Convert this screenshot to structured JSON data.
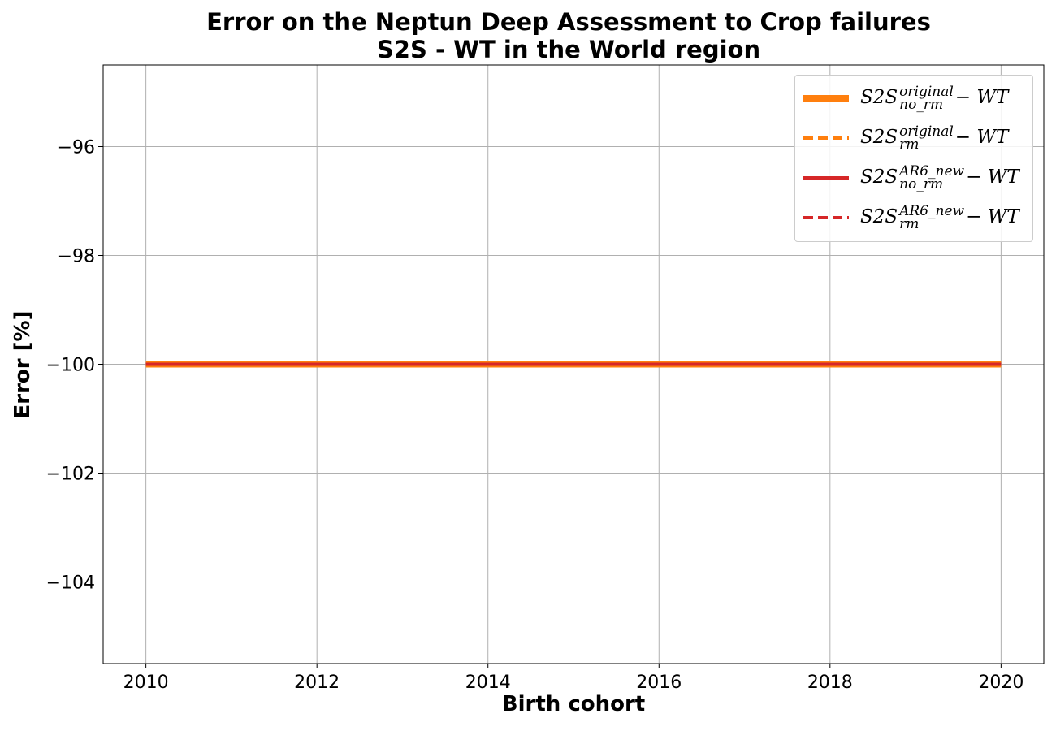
{
  "chart_data": {
    "type": "line",
    "title": "Error on the Neptun Deep Assessment to Crop failures",
    "subtitle": "S2S - WT in the World region",
    "xlabel": "Birth cohort",
    "ylabel": "Error [%]",
    "xlim": [
      2009.5,
      2020.5
    ],
    "ylim": [
      -105.5,
      -94.5
    ],
    "xticks": [
      2010,
      2012,
      2014,
      2016,
      2018,
      2020
    ],
    "yticks": [
      -96,
      -98,
      -100,
      -102,
      -104
    ],
    "ytick_labels": [
      "−96",
      "−98",
      "−100",
      "−102",
      "−104"
    ],
    "grid": true,
    "legend_position": "top-right",
    "x": [
      2010,
      2011,
      2012,
      2013,
      2014,
      2015,
      2016,
      2017,
      2018,
      2019,
      2020
    ],
    "series": [
      {
        "base": "S2S",
        "sup": "original",
        "sub": "no_rm",
        "suffix": "− WT",
        "color": "#ff7f0e",
        "style": "solid",
        "width": 8,
        "values": [
          -100,
          -100,
          -100,
          -100,
          -100,
          -100,
          -100,
          -100,
          -100,
          -100,
          -100
        ]
      },
      {
        "base": "S2S",
        "sup": "original",
        "sub": "rm",
        "suffix": "− WT",
        "color": "#ff7f0e",
        "style": "dashed",
        "width": 4,
        "values": [
          -100,
          -100,
          -100,
          -100,
          -100,
          -100,
          -100,
          -100,
          -100,
          -100,
          -100
        ]
      },
      {
        "base": "S2S",
        "sup": "AR6_new",
        "sub": "no_rm",
        "suffix": "− WT",
        "color": "#d62728",
        "style": "solid",
        "width": 4,
        "values": [
          -100,
          -100,
          -100,
          -100,
          -100,
          -100,
          -100,
          -100,
          -100,
          -100,
          -100
        ]
      },
      {
        "base": "S2S",
        "sup": "AR6_new",
        "sub": "rm",
        "suffix": "− WT",
        "color": "#d62728",
        "style": "dashed",
        "width": 4,
        "values": [
          -100,
          -100,
          -100,
          -100,
          -100,
          -100,
          -100,
          -100,
          -100,
          -100,
          -100
        ]
      }
    ]
  }
}
